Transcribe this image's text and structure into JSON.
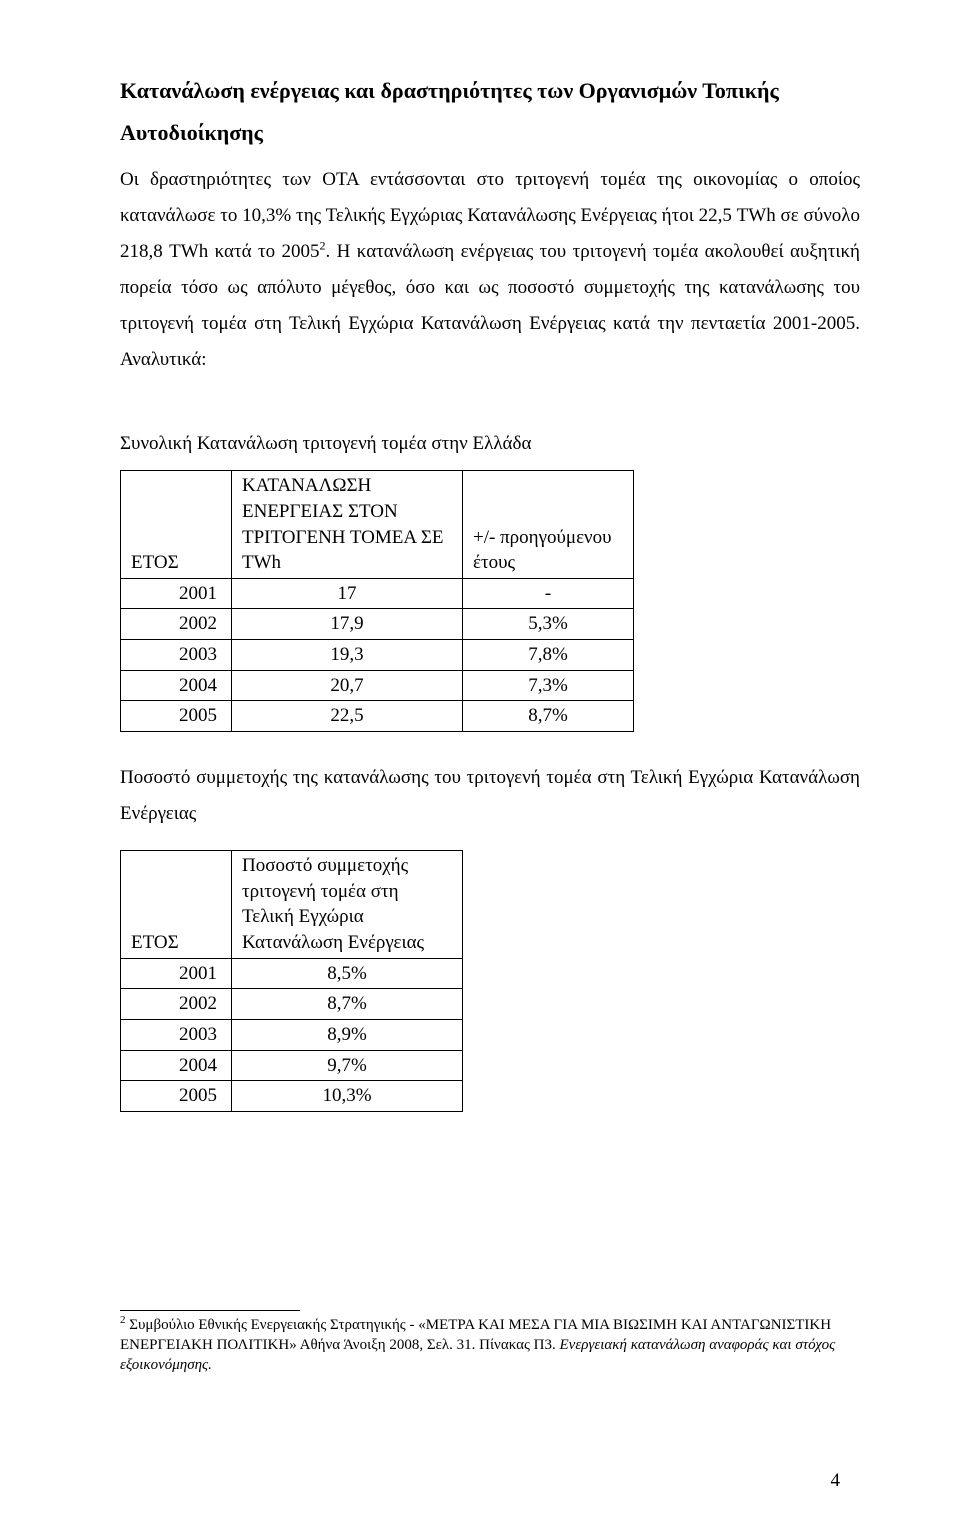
{
  "title": "Κατανάλωση ενέργειας και δραστηριότητες των Οργανισμών Τοπικής Αυτοδιοίκησης",
  "paragraph1_a": "Οι δραστηριότητες των ΟΤΑ εντάσσονται στο τριτογενή τομέα της οικονομίας ο οποίος κατανάλωσε το 10,3% της Τελικής Εγχώριας Κατανάλωσης Ενέργειας ήτοι 22,5 TWh σε σύνολο 218,8 TWh κατά το 2005",
  "paragraph1_b": ". Η κατανάλωση ενέργειας του τριτογενή τομέα ακολουθεί αυξητική πορεία τόσο ως απόλυτο μέγεθος, όσο και ως ποσοστό συμμετοχής της κατανάλωσης του τριτογενή τομέα στη Τελική Εγχώρια Κατανάλωση Ενέργειας κατά την πενταετία 2001-2005. Αναλυτικά:",
  "superscript2": "2",
  "table1": {
    "caption": "Συνολική Κατανάλωση τριτογενή τομέα στην Ελλάδα",
    "headers": {
      "col1": "ΕΤΟΣ",
      "col2": "ΚΑΤΑΝΑΛΩΣΗ ΕΝΕΡΓΕΙΑΣ ΣΤΟΝ ΤΡΙΤΟΓΕΝΗ ΤΟΜΕΑ ΣΕ TWh",
      "col3": "+/- προηγούμενου έτους"
    },
    "rows": [
      {
        "year": "2001",
        "value": "17",
        "delta": "-"
      },
      {
        "year": "2002",
        "value": "17,9",
        "delta": "5,3%"
      },
      {
        "year": "2003",
        "value": "19,3",
        "delta": "7,8%"
      },
      {
        "year": "2004",
        "value": "20,7",
        "delta": "7,3%"
      },
      {
        "year": "2005",
        "value": "22,5",
        "delta": "8,7%"
      }
    ]
  },
  "para_between": "Ποσοστό συμμετοχής της κατανάλωσης του τριτογενή τομέα στη Τελική Εγχώρια Κατανάλωση Ενέργειας",
  "table2": {
    "headers": {
      "col1": "ΕΤΟΣ",
      "col2": "Ποσοστό συμμετοχής τριτογενή τομέα στη Τελική Εγχώρια Κατανάλωση Ενέργειας"
    },
    "rows": [
      {
        "year": "2001",
        "value": "8,5%"
      },
      {
        "year": "2002",
        "value": "8,7%"
      },
      {
        "year": "2003",
        "value": "8,9%"
      },
      {
        "year": "2004",
        "value": "9,7%"
      },
      {
        "year": "2005",
        "value": "10,3%"
      }
    ]
  },
  "footnote": {
    "num": "2",
    "text_a": " Συμβούλιο Εθνικής Ενεργειακής Στρατηγικής - «ΜΕΤΡΑ ΚΑΙ ΜΕΣΑ ΓΙΑ ΜΙΑ ΒΙΩΣΙΜΗ ΚΑΙ ΑΝΤΑΓΩΝΙΣΤΙΚΗ ΕΝΕΡΓΕΙΑΚΗ ΠΟΛΙΤΙΚΗ» Αθήνα  Άνοιξη 2008, Σελ. 31. Πίνακας  Π3. ",
    "text_b": "Ενεργειακή κατανάλωση αναφοράς και στόχος εξοικονόμησης."
  },
  "page_number": "4"
}
